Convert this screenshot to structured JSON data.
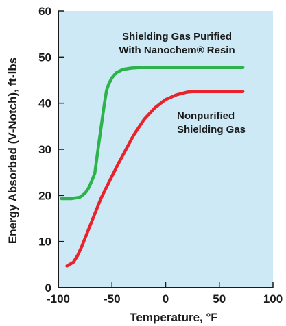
{
  "chart_data": {
    "type": "line",
    "title": "",
    "xlabel": "Temperature, °F",
    "ylabel": "Energy Absorbed (V-Notch), ft-lbs",
    "xlim": [
      -100,
      100
    ],
    "ylim": [
      0,
      60
    ],
    "xticks": [
      -100,
      -50,
      0,
      50,
      100
    ],
    "yticks": [
      0,
      10,
      20,
      30,
      40,
      50,
      60
    ],
    "grid": false,
    "background_color": "#cde9f6",
    "series": [
      {
        "name": "Shielding Gas Purified With Nanochem® Resin",
        "label_lines": [
          "Shielding Gas Purified",
          "With Nanochem® Resin"
        ],
        "color": "#2db34a",
        "x": [
          -97,
          -88,
          -80,
          -75,
          -72,
          -69,
          -66,
          -63,
          -60,
          -57,
          -55,
          -53,
          -50,
          -46,
          -40,
          -32,
          -25,
          0,
          30,
          72
        ],
        "y": [
          19.3,
          19.3,
          19.6,
          20.5,
          21.5,
          23,
          24.8,
          30,
          35,
          40,
          42.8,
          44.2,
          45.5,
          46.6,
          47.3,
          47.6,
          47.7,
          47.7,
          47.7,
          47.7
        ]
      },
      {
        "name": "Nonpurified Shielding Gas",
        "label_lines": [
          "Nonpurified",
          "Shielding Gas"
        ],
        "color": "#e8232b",
        "x": [
          -92,
          -86,
          -82,
          -78,
          -72,
          -60,
          -45,
          -30,
          -20,
          -10,
          0,
          10,
          20,
          25,
          72
        ],
        "y": [
          4.7,
          5.5,
          7,
          9,
          12.5,
          19.5,
          26.5,
          33,
          36.5,
          39,
          40.8,
          41.8,
          42.4,
          42.5,
          42.5
        ]
      }
    ]
  }
}
